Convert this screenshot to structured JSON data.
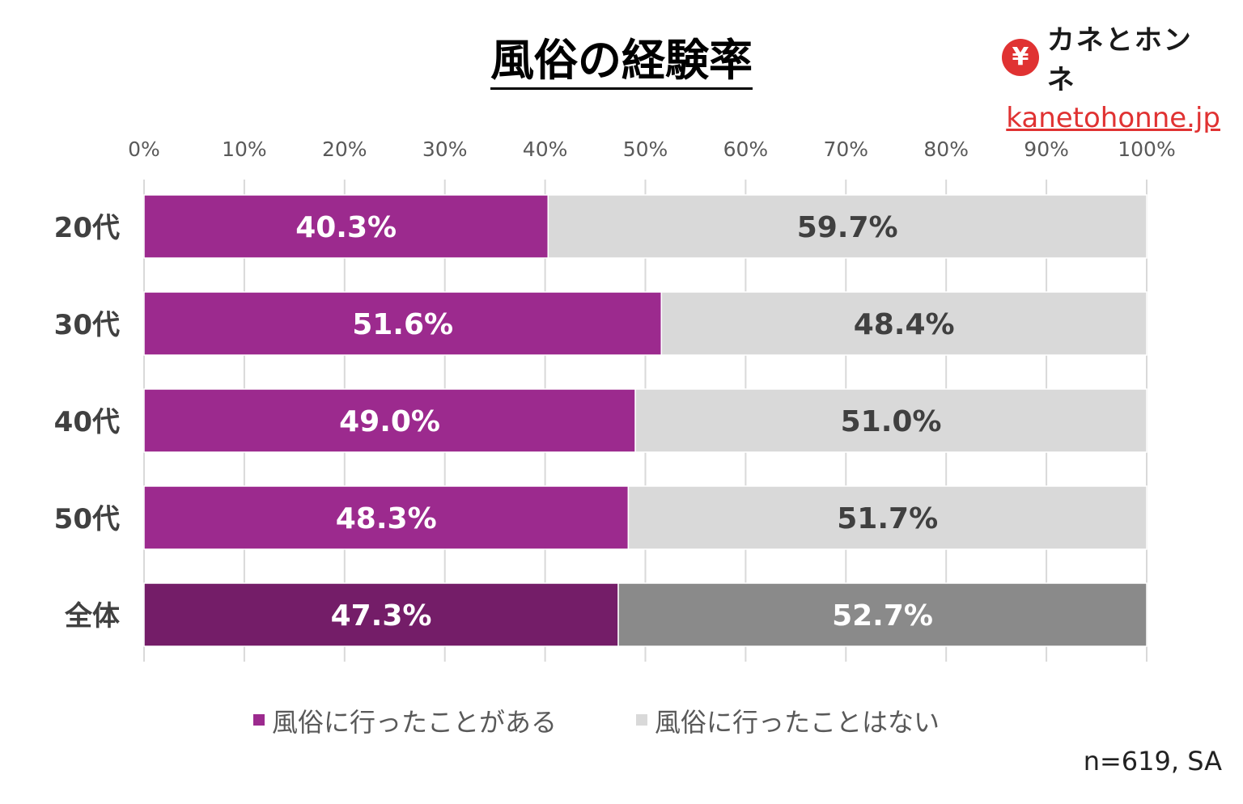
{
  "title": "風俗の経験率",
  "brand": {
    "icon": "yen-icon",
    "name": "カネとホンネ",
    "url": "kanetohonne.jp",
    "color": "#e03232"
  },
  "footnote": "n=619, SA",
  "chart_data": {
    "type": "bar",
    "orientation": "horizontal",
    "stacked": true,
    "categories": [
      "20代",
      "30代",
      "40代",
      "50代",
      "全体"
    ],
    "series": [
      {
        "name": "風俗に行ったことがある",
        "values": [
          40.3,
          51.6,
          49.0,
          48.3,
          47.3
        ],
        "labels": [
          "40.3%",
          "51.6%",
          "49.0%",
          "48.3%",
          "47.3%"
        ],
        "color": "#9c2a8e",
        "highlight_color": "#741d68"
      },
      {
        "name": "風俗に行ったことはない",
        "values": [
          59.7,
          48.4,
          51.0,
          51.7,
          52.7
        ],
        "labels": [
          "59.7%",
          "48.4%",
          "51.0%",
          "51.7%",
          "52.7%"
        ],
        "color": "#d9d9d9",
        "highlight_color": "#8a8a8a"
      }
    ],
    "xlim": [
      0,
      100
    ],
    "xticks": [
      "0%",
      "10%",
      "20%",
      "30%",
      "40%",
      "50%",
      "60%",
      "70%",
      "80%",
      "90%",
      "100%"
    ],
    "grid": true,
    "legend_position": "bottom"
  }
}
